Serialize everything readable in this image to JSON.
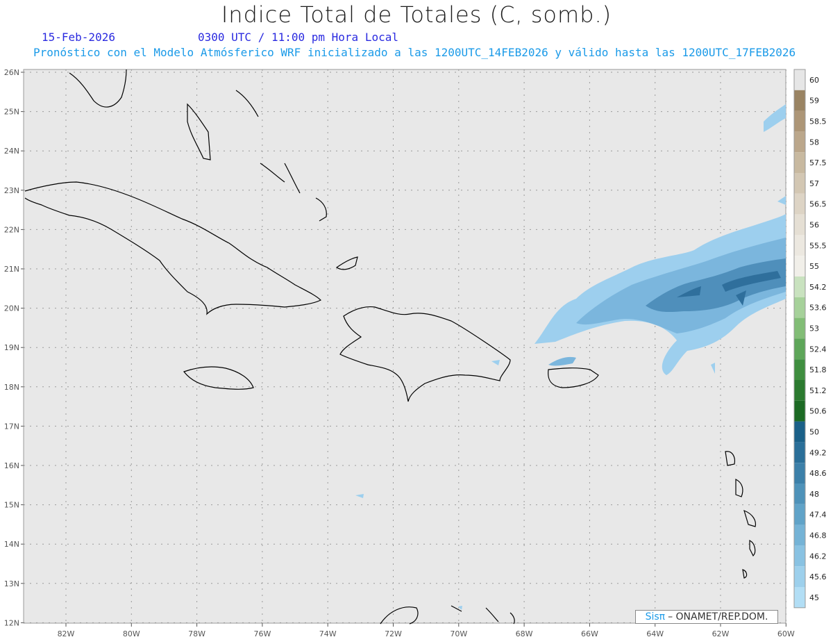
{
  "title": "Indice Total de Totales (C, somb.)",
  "date": "15-Feb-2026",
  "time": "0300 UTC / 11:00 pm Hora Local",
  "forecast": "Pronóstico con el Modelo Atmósferico WRF inicializado a las 1200UTC_14FEB2026 y válido hasta las  1200UTC_17FEB2026",
  "footer": {
    "brand": "Sisπ",
    "text": "– ONAMET/REP.DOM."
  },
  "lat_labels": [
    "26N",
    "25N",
    "24N",
    "23N",
    "22N",
    "21N",
    "20N",
    "19N",
    "18N",
    "17N",
    "16N",
    "15N",
    "14N",
    "13N",
    "12N"
  ],
  "lon_labels": [
    "82W",
    "80W",
    "78W",
    "76W",
    "74W",
    "72W",
    "70W",
    "68W",
    "66W",
    "64W",
    "62W",
    "60W"
  ],
  "colorbar": {
    "labels": [
      "60",
      "59",
      "58.5",
      "58",
      "57.5",
      "57",
      "56.5",
      "56",
      "55.5",
      "55",
      "54.2",
      "53.6",
      "53",
      "52.4",
      "51.8",
      "51.2",
      "50.6",
      "50",
      "49.2",
      "48.6",
      "48",
      "47.4",
      "46.8",
      "46.2",
      "45.6",
      "45"
    ],
    "colors": [
      "#e6e6e6",
      "#9a8463",
      "#ad9677",
      "#bba78b",
      "#c8b9a0",
      "#d3c7b3",
      "#ddd4c5",
      "#e5dfd4",
      "#ece8e0",
      "#f1efe9",
      "#c9e2bf",
      "#a6d19a",
      "#82bd76",
      "#5ea659",
      "#3f8e3f",
      "#2b7a2f",
      "#1c6a24",
      "#1a6088",
      "#2a6f99",
      "#3c80a9",
      "#4e92b9",
      "#60a3c8",
      "#75b3d6",
      "#89c2e2",
      "#9dd0ec",
      "#b2deF5"
    ]
  }
}
